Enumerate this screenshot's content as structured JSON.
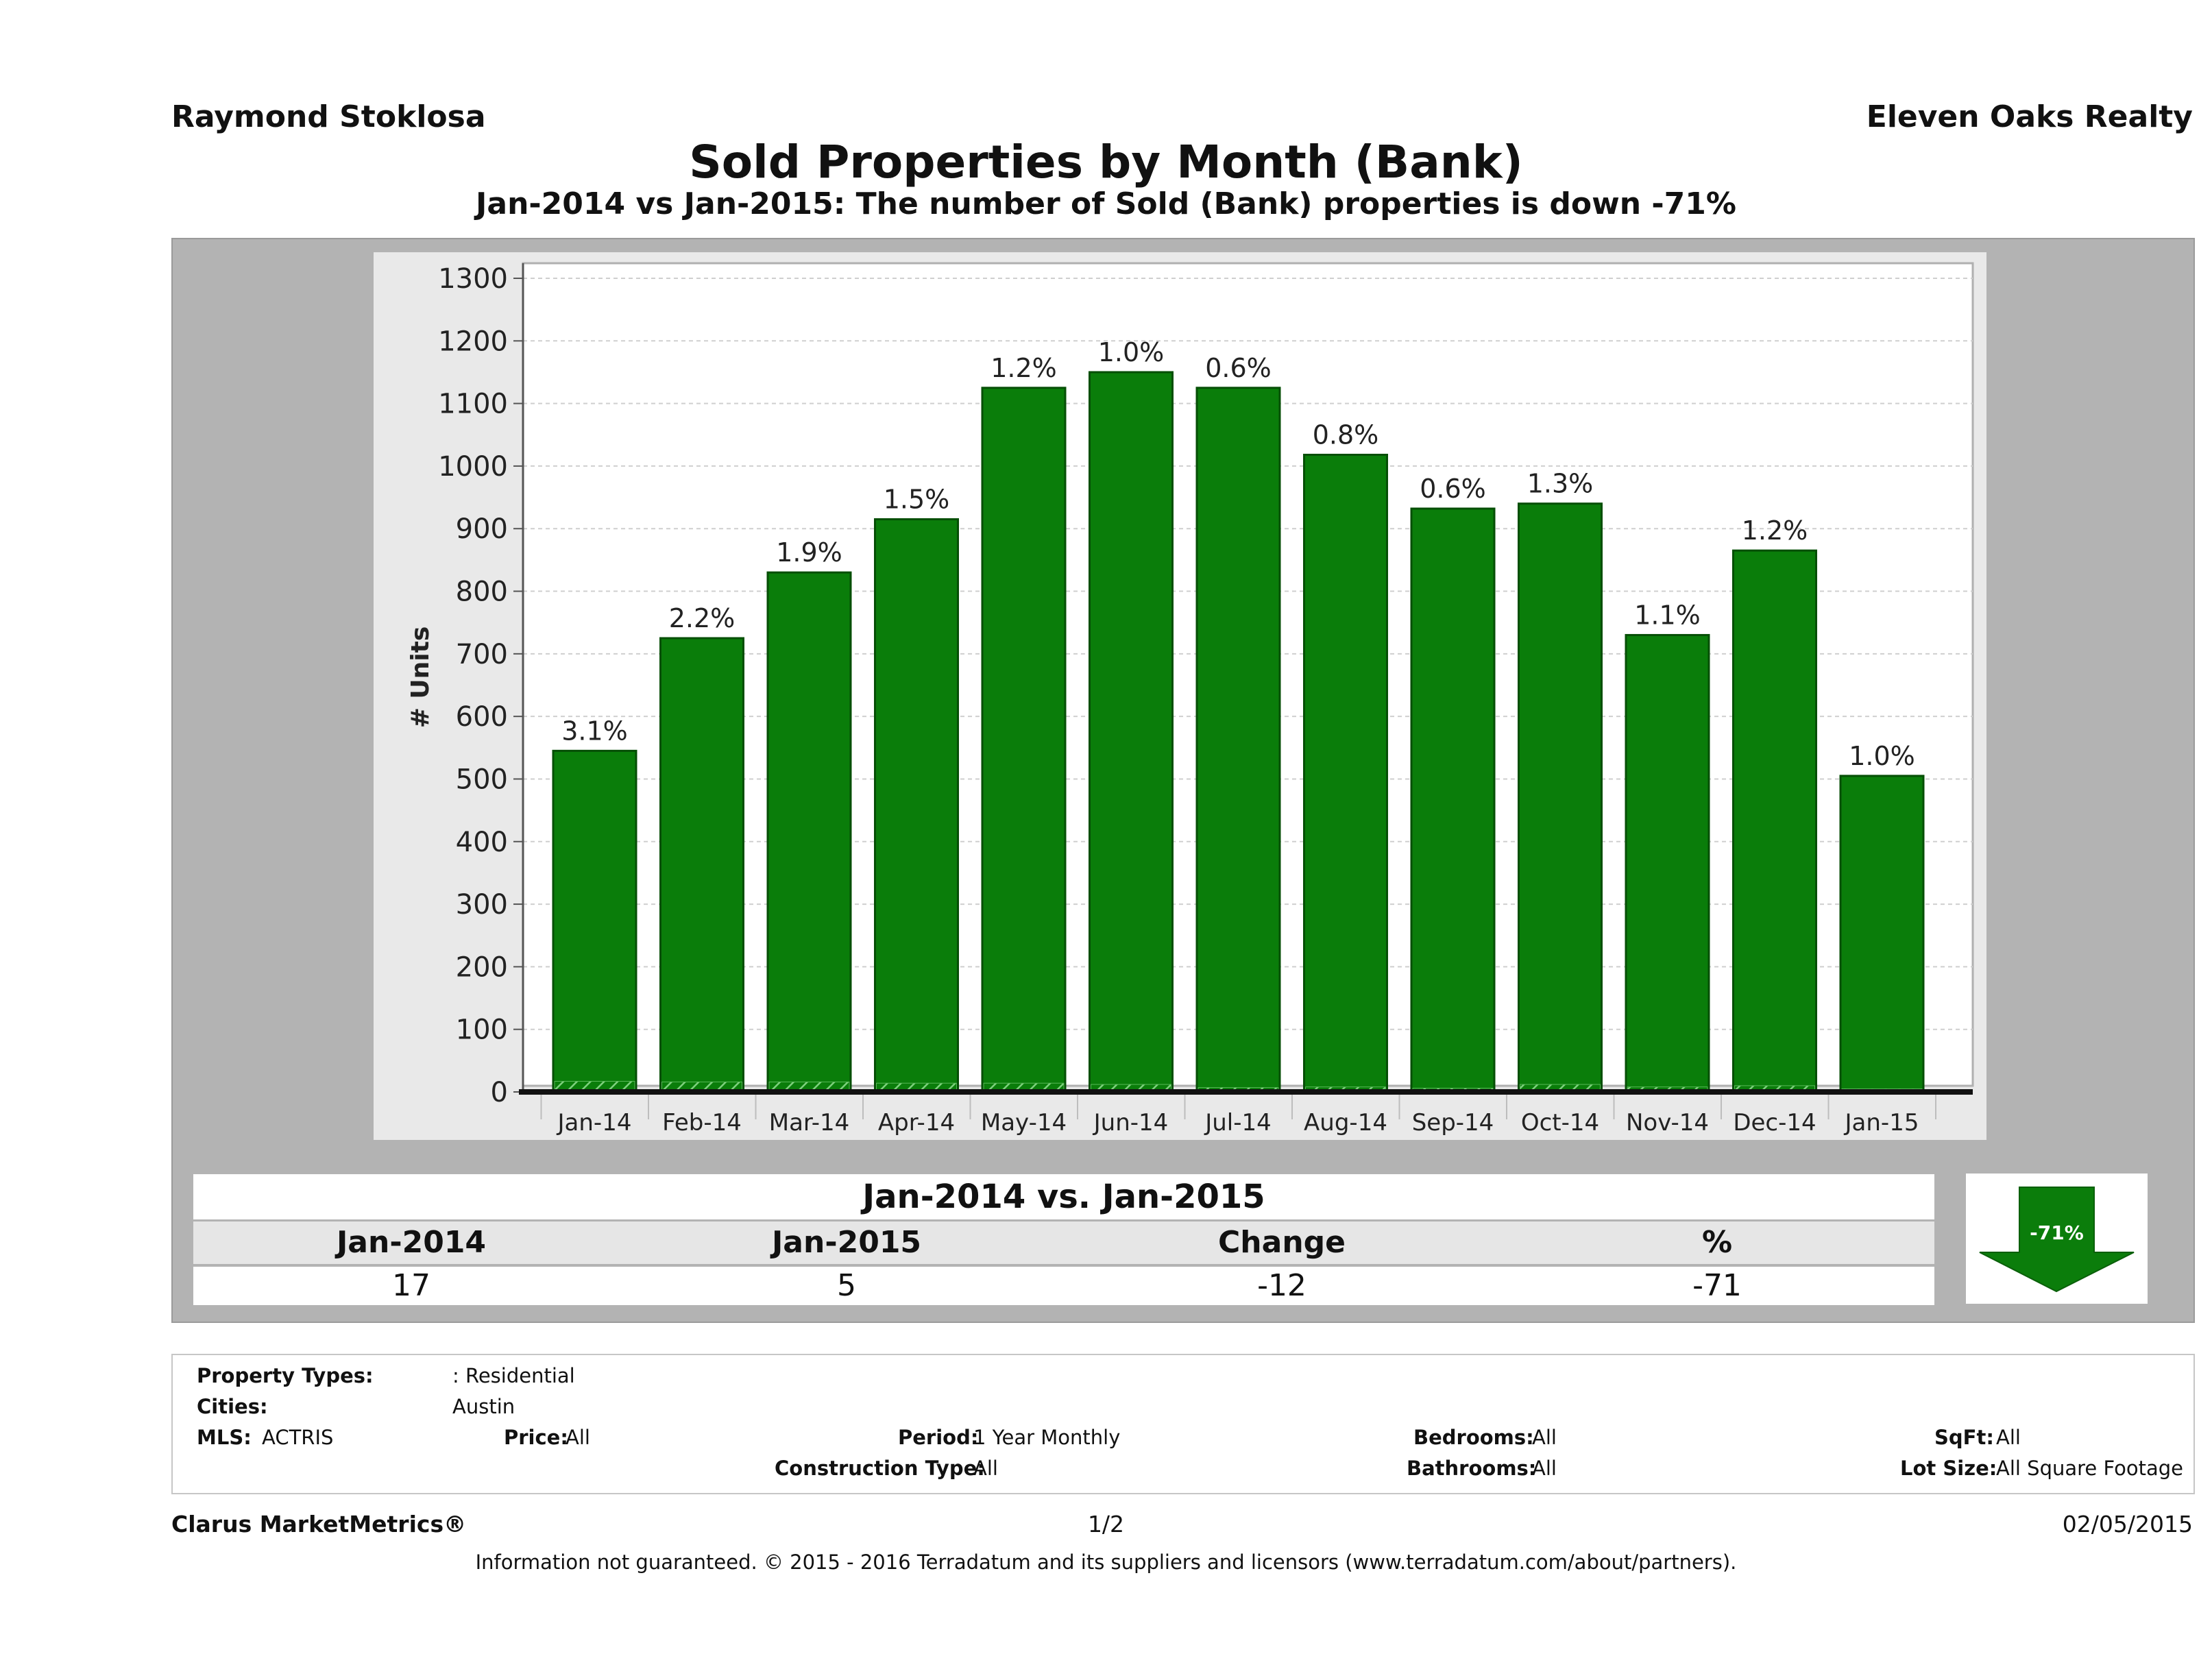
{
  "header": {
    "agent": "Raymond Stoklosa",
    "company": "Eleven Oaks Realty",
    "title": "Sold Properties by Month (Bank)",
    "subtitle": "Jan-2014 vs Jan-2015: The number of Sold (Bank)  properties is down -71%"
  },
  "chart_data": {
    "type": "bar",
    "categories": [
      "Jan-14",
      "Feb-14",
      "Mar-14",
      "Apr-14",
      "May-14",
      "Jun-14",
      "Jul-14",
      "Aug-14",
      "Sep-14",
      "Oct-14",
      "Nov-14",
      "Dec-14",
      "Jan-15"
    ],
    "series": [
      {
        "values": [
          545,
          725,
          830,
          915,
          1125,
          1150,
          1125,
          1018,
          932,
          940,
          730,
          865,
          505
        ]
      }
    ],
    "bank_units": [
      17,
      16,
      16,
      14,
      14,
      12,
      7,
      8,
      6,
      12,
      8,
      10,
      5
    ],
    "data_labels": [
      "3.1%",
      "2.2%",
      "1.9%",
      "1.5%",
      "1.2%",
      "1.0%",
      "0.6%",
      "0.8%",
      "0.6%",
      "1.3%",
      "1.1%",
      "1.2%",
      "1.0%"
    ],
    "ylabel": "# Units",
    "xlabel": "",
    "ylim": [
      0,
      1300
    ],
    "yticks": [
      0,
      100,
      200,
      300,
      400,
      500,
      600,
      700,
      800,
      900,
      1000,
      1100,
      1200,
      1300
    ],
    "grid": true,
    "colors": {
      "bar": "#0a7d0a",
      "bar_edge": "#064f06",
      "bank_hatch": "#58b858"
    }
  },
  "comparison": {
    "title": "Jan-2014 vs. Jan-2015",
    "headers": [
      "Jan-2014",
      "Jan-2015",
      "Change",
      "%"
    ],
    "values": [
      "17",
      "5",
      "-12",
      "-71"
    ],
    "badge": "-71%"
  },
  "info": {
    "property_types_label": "Property Types:",
    "property_types_value": ": Residential",
    "cities_label": "Cities:",
    "cities_value": "Austin",
    "mls_label": "MLS:",
    "mls_value": "ACTRIS",
    "price_label": "Price:",
    "price_value": "All",
    "period_label": "Period:",
    "period_value": "1 Year Monthly",
    "construction_label": "Construction Type:",
    "construction_value": "All",
    "bedrooms_label": "Bedrooms:",
    "bedrooms_value": "All",
    "bathrooms_label": "Bathrooms:",
    "bathrooms_value": "All",
    "sqft_label": "SqFt:",
    "sqft_value": "All",
    "lot_label": "Lot Size:",
    "lot_value": "All Square Footage"
  },
  "footer": {
    "brand": "Clarus MarketMetrics®",
    "page": "1/2",
    "date": "02/05/2015",
    "disclaimer": "Information not guaranteed. © 2015 - 2016 Terradatum and its suppliers and licensors (www.terradatum.com/about/partners)."
  }
}
